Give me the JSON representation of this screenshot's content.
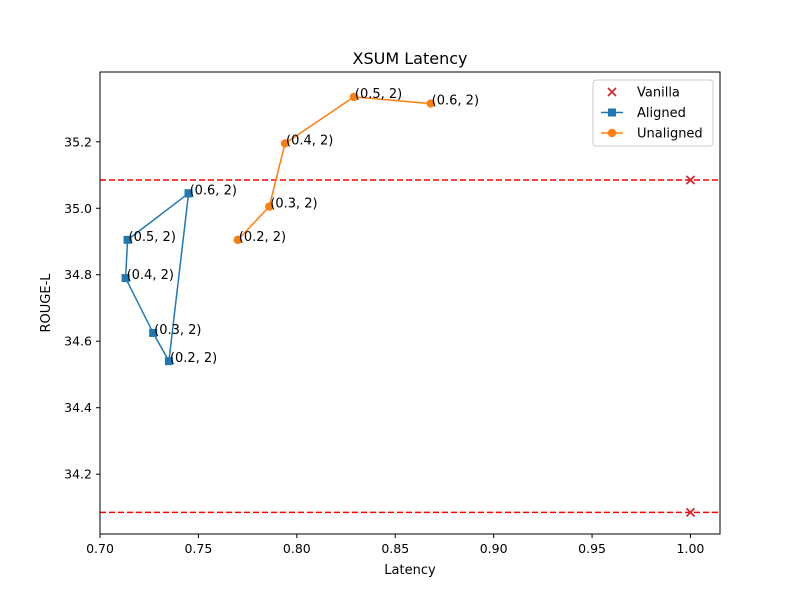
{
  "chart_data": {
    "type": "line",
    "title": "XSUM Latency",
    "xlabel": "Latency",
    "ylabel": "ROUGE-L",
    "xlim": [
      0.7,
      1.015
    ],
    "ylim": [
      34.02,
      35.41
    ],
    "xticks": [
      "0.70",
      "0.75",
      "0.80",
      "0.85",
      "0.90",
      "0.95",
      "1.00"
    ],
    "xtick_values": [
      0.7,
      0.75,
      0.8,
      0.85,
      0.9,
      0.95,
      1.0
    ],
    "yticks": [
      "34.2",
      "34.4",
      "34.6",
      "34.8",
      "35.0",
      "35.2"
    ],
    "ytick_values": [
      34.2,
      34.4,
      34.6,
      34.8,
      35.0,
      35.2
    ],
    "grid": false,
    "legend": {
      "position": "top-right"
    },
    "reference_lines": [
      {
        "y": 35.085,
        "color": "#ff0000",
        "style": "dashed"
      },
      {
        "y": 34.085,
        "color": "#ff0000",
        "style": "dashed"
      }
    ],
    "series": [
      {
        "name": "Vanilla",
        "marker": "x",
        "color": "#d62728",
        "connect": false,
        "points": [
          {
            "x": 1.0,
            "y": 35.085
          },
          {
            "x": 1.0,
            "y": 34.085
          }
        ]
      },
      {
        "name": "Aligned",
        "marker": "square",
        "color": "#1f77b4",
        "connect": true,
        "points": [
          {
            "x": 0.745,
            "y": 35.045,
            "label": "(0.6, 2)"
          },
          {
            "x": 0.714,
            "y": 34.905,
            "label": "(0.5, 2)"
          },
          {
            "x": 0.713,
            "y": 34.79,
            "label": "(0.4, 2)"
          },
          {
            "x": 0.727,
            "y": 34.625,
            "label": "(0.3, 2)"
          },
          {
            "x": 0.735,
            "y": 34.54,
            "label": "(0.2, 2)"
          },
          {
            "x": 0.745,
            "y": 35.045
          }
        ]
      },
      {
        "name": "Unaligned",
        "marker": "circle",
        "color": "#ff7f0e",
        "connect": true,
        "points": [
          {
            "x": 0.77,
            "y": 34.905,
            "label": "(0.2, 2)"
          },
          {
            "x": 0.786,
            "y": 35.005,
            "label": "(0.3, 2)"
          },
          {
            "x": 0.794,
            "y": 35.195,
            "label": "(0.4, 2)"
          },
          {
            "x": 0.829,
            "y": 35.335,
            "label": "(0.5, 2)"
          },
          {
            "x": 0.868,
            "y": 35.315,
            "label": "(0.6, 2)"
          }
        ]
      }
    ]
  }
}
